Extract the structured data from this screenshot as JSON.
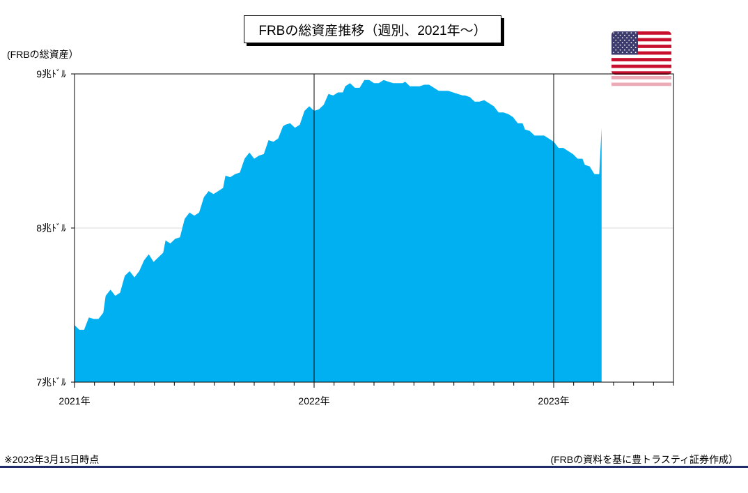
{
  "title": "FRBの総資産推移（週別、2021年～）",
  "note": "※2023年3月15日時点",
  "source": "(FRBの資料を基に豊トラスティ証券作成）",
  "flag_icon": "us-flag-icon",
  "colors": {
    "area": "#00B0F0",
    "frame": "#000000",
    "grid": "#d9d9d9",
    "rule": "#1f2d6b"
  },
  "chart_data": {
    "type": "area",
    "title": "FRBの総資産推移（週別、2021年～）",
    "ylabel": "(FRBの総資産）",
    "ylim": [
      7,
      9
    ],
    "yticks": [
      7,
      8,
      9
    ],
    "ytick_labels": [
      "7兆ﾄﾞﾙ",
      "8兆ﾄﾞﾙ",
      "9兆ﾄﾞﾙ"
    ],
    "xlim": [
      2021.0,
      2023.5
    ],
    "xticks": [
      2021,
      2022,
      2023
    ],
    "xtick_labels": [
      "2021年",
      "2022年",
      "2023年"
    ],
    "minor_ticks_per_year": 12,
    "x": [
      2021.0,
      2021.02,
      2021.04,
      2021.06,
      2021.08,
      2021.1,
      2021.12,
      2021.13,
      2021.15,
      2021.17,
      2021.19,
      2021.21,
      2021.23,
      2021.25,
      2021.27,
      2021.29,
      2021.31,
      2021.33,
      2021.35,
      2021.37,
      2021.38,
      2021.4,
      2021.42,
      2021.44,
      2021.46,
      2021.48,
      2021.5,
      2021.52,
      2021.54,
      2021.56,
      2021.58,
      2021.6,
      2021.62,
      2021.63,
      2021.65,
      2021.67,
      2021.69,
      2021.71,
      2021.73,
      2021.75,
      2021.77,
      2021.79,
      2021.81,
      2021.83,
      2021.85,
      2021.87,
      2021.88,
      2021.9,
      2021.92,
      2021.94,
      2021.96,
      2021.98,
      2022.0,
      2022.02,
      2022.04,
      2022.06,
      2022.08,
      2022.1,
      2022.12,
      2022.13,
      2022.15,
      2022.17,
      2022.19,
      2022.21,
      2022.23,
      2022.25,
      2022.27,
      2022.29,
      2022.31,
      2022.33,
      2022.35,
      2022.37,
      2022.38,
      2022.4,
      2022.42,
      2022.44,
      2022.46,
      2022.48,
      2022.5,
      2022.52,
      2022.54,
      2022.56,
      2022.58,
      2022.6,
      2022.62,
      2022.63,
      2022.65,
      2022.67,
      2022.69,
      2022.71,
      2022.73,
      2022.75,
      2022.77,
      2022.79,
      2022.81,
      2022.83,
      2022.85,
      2022.87,
      2022.88,
      2022.9,
      2022.92,
      2022.94,
      2022.96,
      2022.98,
      2023.0,
      2023.02,
      2023.04,
      2023.06,
      2023.08,
      2023.1,
      2023.12,
      2023.13,
      2023.15,
      2023.17,
      2023.19,
      2023.2
    ],
    "y": [
      7.37,
      7.34,
      7.34,
      7.42,
      7.41,
      7.41,
      7.45,
      7.56,
      7.6,
      7.56,
      7.58,
      7.69,
      7.72,
      7.68,
      7.72,
      7.79,
      7.83,
      7.78,
      7.81,
      7.84,
      7.92,
      7.9,
      7.93,
      7.94,
      8.06,
      8.1,
      8.08,
      8.1,
      8.2,
      8.24,
      8.22,
      8.24,
      8.26,
      8.34,
      8.33,
      8.35,
      8.36,
      8.45,
      8.49,
      8.45,
      8.47,
      8.48,
      8.57,
      8.56,
      8.58,
      8.66,
      8.67,
      8.68,
      8.65,
      8.67,
      8.76,
      8.79,
      8.76,
      8.77,
      8.8,
      8.87,
      8.86,
      8.88,
      8.88,
      8.92,
      8.94,
      8.91,
      8.91,
      8.96,
      8.96,
      8.94,
      8.94,
      8.96,
      8.95,
      8.94,
      8.94,
      8.94,
      8.95,
      8.92,
      8.92,
      8.92,
      8.93,
      8.93,
      8.91,
      8.89,
      8.89,
      8.89,
      8.88,
      8.87,
      8.86,
      8.86,
      8.85,
      8.82,
      8.82,
      8.83,
      8.81,
      8.79,
      8.75,
      8.75,
      8.74,
      8.72,
      8.68,
      8.68,
      8.64,
      8.63,
      8.6,
      8.6,
      8.6,
      8.58,
      8.56,
      8.52,
      8.52,
      8.5,
      8.48,
      8.45,
      8.45,
      8.41,
      8.4,
      8.35,
      8.35,
      8.65
    ]
  }
}
